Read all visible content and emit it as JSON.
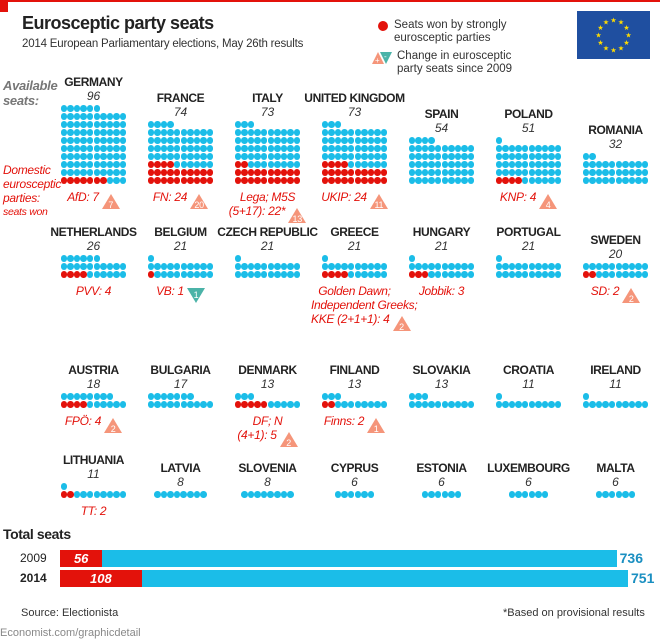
{
  "header": {
    "title": "Eurosceptic party seats",
    "subtitle": "2014 European Parliamentary elections, May 26th results"
  },
  "legend": {
    "red_dot": "Seats won by strongly eurosceptic parties",
    "change": "Change in eurosceptic party seats since 2009"
  },
  "side_labels": {
    "available": "Available seats:",
    "domestic": "Domestic eurosceptic parties:",
    "seats_won": "seats won"
  },
  "colors": {
    "seat": "#1bbde8",
    "eurosceptic": "#e3120b",
    "increase": "#f5957a",
    "decrease": "#4bb3a8",
    "flag": "#1f4fa0",
    "flag_stars": "#ffdd00"
  },
  "chart_data": {
    "type": "dot-matrix",
    "countries": [
      {
        "name": "GERMANY",
        "seats": 96,
        "eurosceptic": 7,
        "party": [
          "AfD: 7"
        ],
        "change": 7,
        "direction": "up"
      },
      {
        "name": "FRANCE",
        "seats": 74,
        "eurosceptic": 24,
        "party": [
          "FN: 24"
        ],
        "change": 20,
        "direction": "up"
      },
      {
        "name": "ITALY",
        "seats": 73,
        "eurosceptic": 22,
        "party": [
          "Lega; M5S",
          "(5+17): 22*"
        ],
        "change": 13,
        "direction": "up"
      },
      {
        "name": "UNITED KINGDOM",
        "seats": 73,
        "eurosceptic": 24,
        "party": [
          "UKIP: 24"
        ],
        "change": 11,
        "direction": "up"
      },
      {
        "name": "SPAIN",
        "seats": 54,
        "eurosceptic": 0,
        "party": [],
        "change": null
      },
      {
        "name": "POLAND",
        "seats": 51,
        "eurosceptic": 4,
        "party": [
          "KNP: 4"
        ],
        "change": 4,
        "direction": "up"
      },
      {
        "name": "ROMANIA",
        "seats": 32,
        "eurosceptic": 0,
        "party": [],
        "change": null
      },
      {
        "name": "NETHERLANDS",
        "seats": 26,
        "eurosceptic": 4,
        "party": [
          "PVV: 4"
        ],
        "change": null
      },
      {
        "name": "BELGIUM",
        "seats": 21,
        "eurosceptic": 1,
        "party": [
          "VB: 1"
        ],
        "change": 1,
        "direction": "down"
      },
      {
        "name": "CZECH REPUBLIC",
        "seats": 21,
        "eurosceptic": 0,
        "party": [],
        "change": null
      },
      {
        "name": "GREECE",
        "seats": 21,
        "eurosceptic": 4,
        "party": [
          "Golden Dawn;",
          "Independent Greeks;",
          "KKE (2+1+1): 4"
        ],
        "change": 2,
        "direction": "up"
      },
      {
        "name": "HUNGARY",
        "seats": 21,
        "eurosceptic": 3,
        "party": [
          "Jobbik: 3"
        ],
        "change": null
      },
      {
        "name": "PORTUGAL",
        "seats": 21,
        "eurosceptic": 0,
        "party": [],
        "change": null
      },
      {
        "name": "SWEDEN",
        "seats": 20,
        "eurosceptic": 2,
        "party": [
          "SD: 2"
        ],
        "change": 2,
        "direction": "up"
      },
      {
        "name": "AUSTRIA",
        "seats": 18,
        "eurosceptic": 4,
        "party": [
          "FPÖ: 4"
        ],
        "change": 2,
        "direction": "up"
      },
      {
        "name": "BULGARIA",
        "seats": 17,
        "eurosceptic": 0,
        "party": [],
        "change": null
      },
      {
        "name": "DENMARK",
        "seats": 13,
        "eurosceptic": 5,
        "party": [
          "DF; N",
          "(4+1): 5"
        ],
        "change": 2,
        "direction": "up"
      },
      {
        "name": "FINLAND",
        "seats": 13,
        "eurosceptic": 2,
        "party": [
          "Finns: 2"
        ],
        "change": 1,
        "direction": "up"
      },
      {
        "name": "SLOVAKIA",
        "seats": 13,
        "eurosceptic": 0,
        "party": [],
        "change": null
      },
      {
        "name": "CROATIA",
        "seats": 11,
        "eurosceptic": 0,
        "party": [],
        "change": null
      },
      {
        "name": "IRELAND",
        "seats": 11,
        "eurosceptic": 0,
        "party": [],
        "change": null
      },
      {
        "name": "LITHUANIA",
        "seats": 11,
        "eurosceptic": 2,
        "party": [
          "TT: 2"
        ],
        "change": null
      },
      {
        "name": "LATVIA",
        "seats": 8,
        "eurosceptic": 0,
        "party": [],
        "change": null
      },
      {
        "name": "SLOVENIA",
        "seats": 8,
        "eurosceptic": 0,
        "party": [],
        "change": null
      },
      {
        "name": "CYPRUS",
        "seats": 6,
        "eurosceptic": 0,
        "party": [],
        "change": null
      },
      {
        "name": "ESTONIA",
        "seats": 6,
        "eurosceptic": 0,
        "party": [],
        "change": null
      },
      {
        "name": "LUXEMBOURG",
        "seats": 6,
        "eurosceptic": 0,
        "party": [],
        "change": null
      },
      {
        "name": "MALTA",
        "seats": 6,
        "eurosceptic": 0,
        "party": [],
        "change": null
      }
    ],
    "totals": {
      "title": "Total seats",
      "type": "bar",
      "rows": [
        {
          "year": "2009",
          "eurosceptic": 56,
          "total": 736
        },
        {
          "year": "2014",
          "eurosceptic": 108,
          "total": 751
        }
      ]
    }
  },
  "footer": {
    "source": "Source: Electionista",
    "note": "*Based on provisional results",
    "credit": "Economist.com/graphicdetail"
  }
}
